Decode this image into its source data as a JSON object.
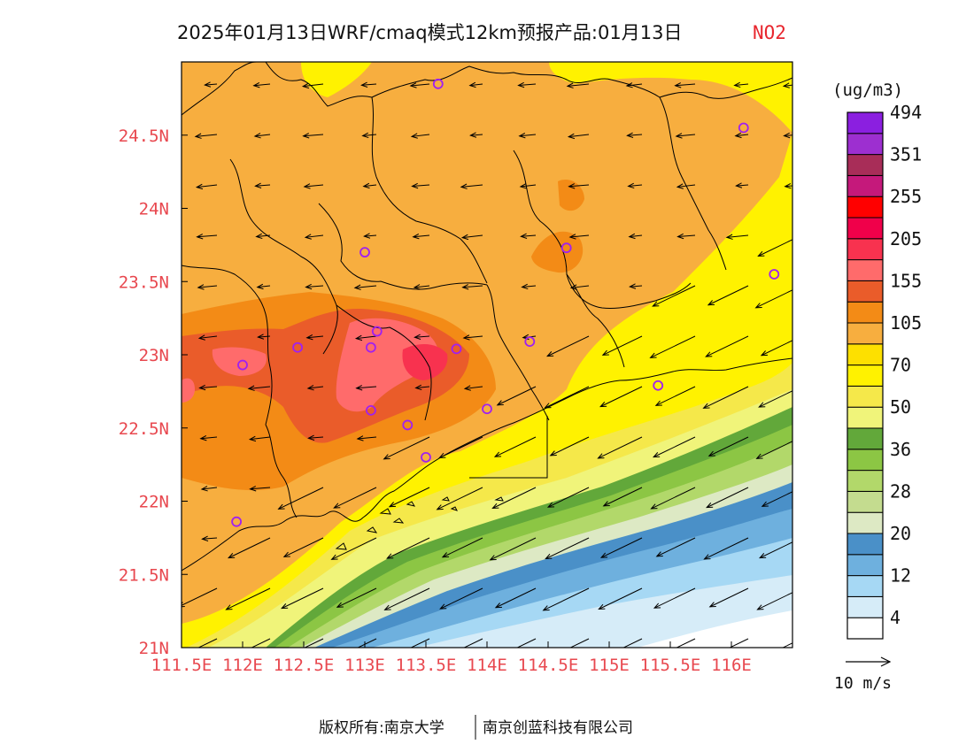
{
  "title": {
    "main": "2025年01月13日WRF/cmaq模式12km预报产品:01月13日",
    "pollutant": "NO2",
    "pollutant_color": "#e8262e"
  },
  "map": {
    "region": "Guangdong / Pearl River Delta",
    "lat_labels": [
      "21N",
      "21.5N",
      "22N",
      "22.5N",
      "23N",
      "23.5N",
      "24N",
      "24.5N"
    ],
    "lat_values": [
      21.0,
      21.5,
      22.0,
      22.5,
      23.0,
      23.5,
      24.0,
      24.5
    ],
    "lon_labels": [
      "111.5E",
      "112E",
      "112.5E",
      "113E",
      "113.5E",
      "114E",
      "114.5E",
      "115E",
      "115.5E",
      "116E"
    ],
    "lon_values": [
      111.5,
      112.0,
      112.5,
      113.0,
      113.5,
      114.0,
      114.5,
      115.0,
      115.5,
      116.0
    ],
    "lon_range": [
      111.5,
      116.5
    ],
    "lat_range": [
      21.0,
      25.0
    ],
    "label_color": "#e8484f",
    "station_color": "#a020f0",
    "stations": [
      {
        "lon": 113.6,
        "lat": 24.85
      },
      {
        "lon": 116.1,
        "lat": 24.55
      },
      {
        "lon": 113.0,
        "lat": 23.7
      },
      {
        "lon": 114.65,
        "lat": 23.73
      },
      {
        "lon": 116.35,
        "lat": 23.55
      },
      {
        "lon": 112.45,
        "lat": 23.05
      },
      {
        "lon": 112.0,
        "lat": 22.93
      },
      {
        "lon": 113.1,
        "lat": 23.16
      },
      {
        "lon": 113.05,
        "lat": 23.05
      },
      {
        "lon": 113.75,
        "lat": 23.04
      },
      {
        "lon": 114.35,
        "lat": 23.09
      },
      {
        "lon": 115.4,
        "lat": 22.79
      },
      {
        "lon": 113.05,
        "lat": 22.62
      },
      {
        "lon": 114.0,
        "lat": 22.63
      },
      {
        "lon": 113.35,
        "lat": 22.52
      },
      {
        "lon": 113.5,
        "lat": 22.3
      },
      {
        "lon": 111.95,
        "lat": 21.86
      }
    ]
  },
  "colorbar": {
    "unit": "(ug/m3)",
    "colors": [
      "#ffffff",
      "#d6ecf8",
      "#a6d8f4",
      "#6eb0de",
      "#4a90c8",
      "#dde9c4",
      "#c4dc8f",
      "#b2d86a",
      "#8cc644",
      "#62a83a",
      "#f0f47a",
      "#f5e84a",
      "#fff200",
      "#fde000",
      "#f7ae3f",
      "#f38b16",
      "#ea5c2a",
      "#ff6b6b",
      "#f8324f",
      "#f0004a",
      "#ff0000",
      "#c5197b",
      "#a82d58",
      "#9d2fd0",
      "#8b1fe0"
    ],
    "labels": [
      "4",
      "12",
      "20",
      "28",
      "36",
      "50",
      "70",
      "105",
      "155",
      "205",
      "255",
      "351",
      "494"
    ]
  },
  "wind_reference": {
    "label": "10 m/s"
  },
  "footer": {
    "text_left": "版权所有:南京大学",
    "text_right": "南京创蓝科技有限公司"
  }
}
